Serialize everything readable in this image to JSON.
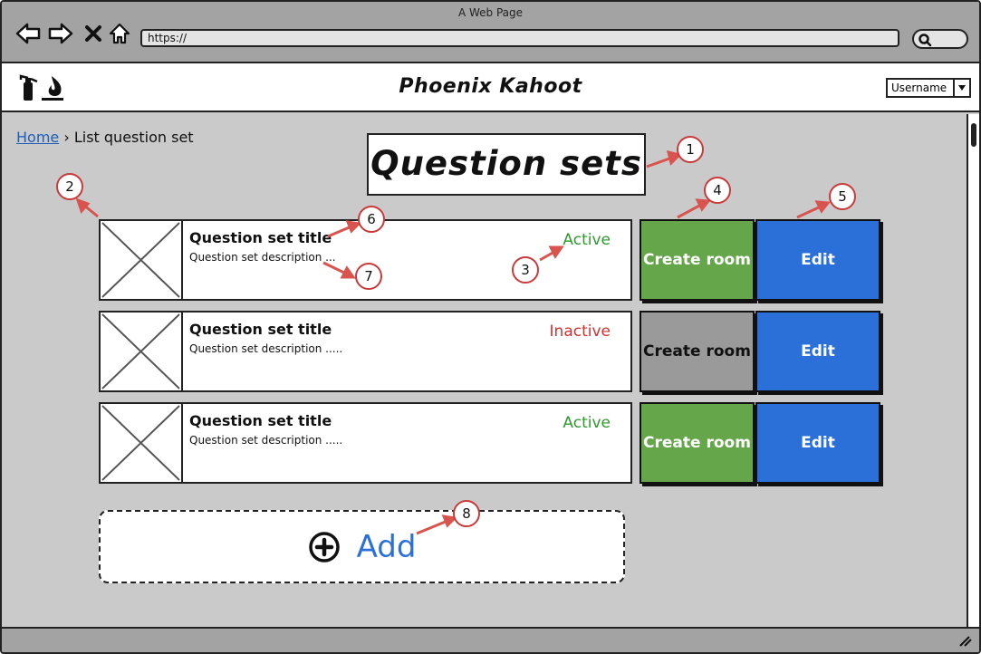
{
  "browser": {
    "window_title": "A Web Page",
    "url": "https://"
  },
  "header": {
    "app_title": "Phoenix Kahoot",
    "user_menu": "Username"
  },
  "breadcrumb": {
    "home": "Home",
    "separator": "›",
    "current": "List question set"
  },
  "page_title": "Question sets",
  "question_sets": [
    {
      "title": "Question set title",
      "description": "Question set description ...",
      "status": "Active",
      "status_color": "#2e9a2e",
      "create_label": "Create room",
      "edit_label": "Edit"
    },
    {
      "title": "Question set title",
      "description": "Question set description .....",
      "status": "Inactive",
      "status_color": "#d23030",
      "create_label": "Create room",
      "edit_label": "Edit"
    },
    {
      "title": "Question set title",
      "description": "Question set description .....",
      "status": "Active",
      "status_color": "#2e9a2e",
      "create_label": "Create room",
      "edit_label": "Edit"
    }
  ],
  "add_button": {
    "label": "Add",
    "icon": "plus-circle-icon"
  },
  "annotations": [
    "1",
    "2",
    "3",
    "4",
    "5",
    "6",
    "7",
    "8"
  ],
  "colors": {
    "create_active": "#66a64a",
    "create_inactive": "#9a9a9a",
    "edit": "#2a70d8",
    "annotation": "#c93a3a"
  }
}
